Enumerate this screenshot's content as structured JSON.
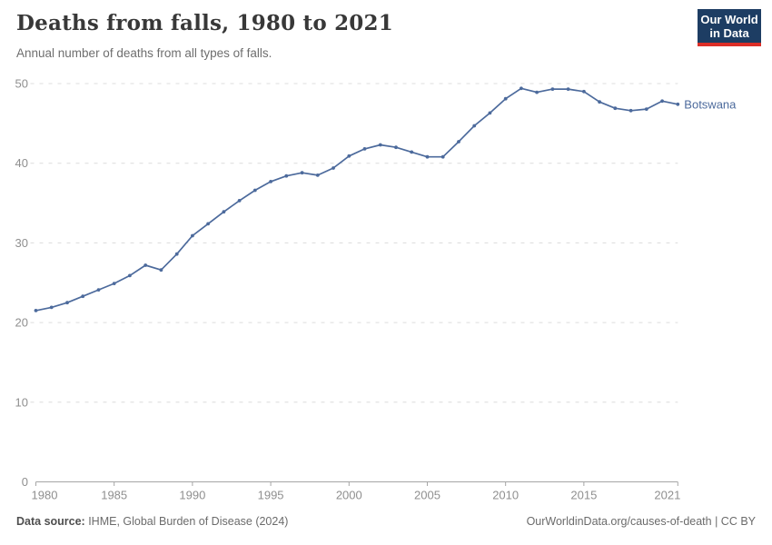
{
  "header": {
    "title": "Deaths from falls, 1980 to 2021",
    "subtitle": "Annual number of deaths from all types of falls.",
    "logo": {
      "line1": "Our World",
      "line2": "in Data",
      "bg_color": "#1d3d63",
      "accent_color": "#dc2e27"
    }
  },
  "chart_data": {
    "type": "line",
    "title": "Deaths from falls, 1980 to 2021",
    "xlabel": "",
    "ylabel": "",
    "xlim": [
      1980,
      2021
    ],
    "ylim": [
      0,
      50
    ],
    "grid": "horizontal-dashed",
    "legend_position": "end-of-line-label",
    "yticks": [
      0,
      10,
      20,
      30,
      40,
      50
    ],
    "xticks": [
      1980,
      1985,
      1990,
      1995,
      2000,
      2005,
      2010,
      2015,
      2021
    ],
    "x": [
      1980,
      1981,
      1982,
      1983,
      1984,
      1985,
      1986,
      1987,
      1988,
      1989,
      1990,
      1991,
      1992,
      1993,
      1994,
      1995,
      1996,
      1997,
      1998,
      1999,
      2000,
      2001,
      2002,
      2003,
      2004,
      2005,
      2006,
      2007,
      2008,
      2009,
      2010,
      2011,
      2012,
      2013,
      2014,
      2015,
      2016,
      2017,
      2018,
      2019,
      2020,
      2021
    ],
    "series": [
      {
        "name": "Botswana",
        "color": "#4c6a9c",
        "values": [
          21.5,
          21.9,
          22.5,
          23.3,
          24.1,
          24.9,
          25.9,
          27.2,
          26.6,
          28.6,
          30.9,
          32.4,
          33.9,
          35.3,
          36.6,
          37.7,
          38.4,
          38.8,
          38.5,
          39.4,
          40.9,
          41.8,
          42.3,
          42.0,
          41.4,
          40.8,
          40.8,
          42.7,
          44.7,
          46.3,
          48.1,
          49.4,
          48.9,
          49.3,
          49.3,
          49.0,
          47.7,
          46.9,
          46.6,
          46.8,
          47.8,
          47.4
        ]
      }
    ]
  },
  "footer": {
    "source_label": "Data source:",
    "source_text": " IHME, Global Burden of Disease (2024)",
    "credit": "OurWorldinData.org/causes-of-death | CC BY"
  }
}
